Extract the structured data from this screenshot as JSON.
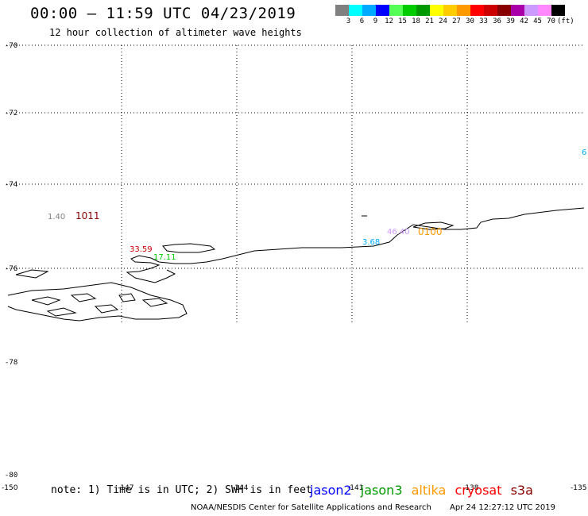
{
  "header": {
    "title": "00:00 – 11:59 UTC 04/23/2019",
    "subtitle": "12 hour collection of altimeter wave heights"
  },
  "color_scale": {
    "unit": "(ft)",
    "bins": [
      {
        "label": "3",
        "color": "#808080"
      },
      {
        "label": "6",
        "color": "#00ffff"
      },
      {
        "label": "9",
        "color": "#00aaff"
      },
      {
        "label": "12",
        "color": "#0000ff"
      },
      {
        "label": "15",
        "color": "#55ff55"
      },
      {
        "label": "18",
        "color": "#00cc00"
      },
      {
        "label": "21",
        "color": "#009900"
      },
      {
        "label": "24",
        "color": "#ffff00"
      },
      {
        "label": "27",
        "color": "#ffcc00"
      },
      {
        "label": "30",
        "color": "#ff9900"
      },
      {
        "label": "33",
        "color": "#ff0000"
      },
      {
        "label": "36",
        "color": "#cc0000"
      },
      {
        "label": "39",
        "color": "#880000"
      },
      {
        "label": "42",
        "color": "#aa00aa"
      },
      {
        "label": "45",
        "color": "#cc99ff"
      },
      {
        "label": "70",
        "color": "#ff88ff"
      },
      {
        "label": "",
        "color": "#000000"
      }
    ]
  },
  "map": {
    "lat_labels": [
      "-70",
      "-72",
      "-74",
      "-76",
      "-78",
      "-78",
      "-80"
    ],
    "lon_labels": [
      "-150",
      "-147",
      "-144",
      "-141",
      "-138",
      "-135"
    ],
    "observations": [
      {
        "text": "1.40",
        "color": "#808080"
      },
      {
        "text": "1011",
        "color": "#880000"
      },
      {
        "text": "33.59",
        "color": "#cc0000"
      },
      {
        "text": "17.11",
        "color": "#00cc00"
      },
      {
        "text": "3.68",
        "color": "#00aaff"
      },
      {
        "text": "46.40",
        "color": "#cc99ff"
      },
      {
        "text": "0100",
        "color": "#ff9900"
      },
      {
        "text": "6",
        "color": "#00aaff"
      }
    ]
  },
  "footer": {
    "note": "note: 1) Time is in UTC; 2) SWH is in feet",
    "satellites": [
      {
        "name": "jason2",
        "color": "#0000ff"
      },
      {
        "name": "jason3",
        "color": "#009900"
      },
      {
        "name": "altika",
        "color": "#ff9900"
      },
      {
        "name": "cryosat",
        "color": "#ff0000"
      },
      {
        "name": "s3a",
        "color": "#880000"
      }
    ],
    "credit": "NOAA/NESDIS Center for Satellite Applications and Research",
    "timestamp": "Apr 24 12:27:12 UTC 2019"
  }
}
